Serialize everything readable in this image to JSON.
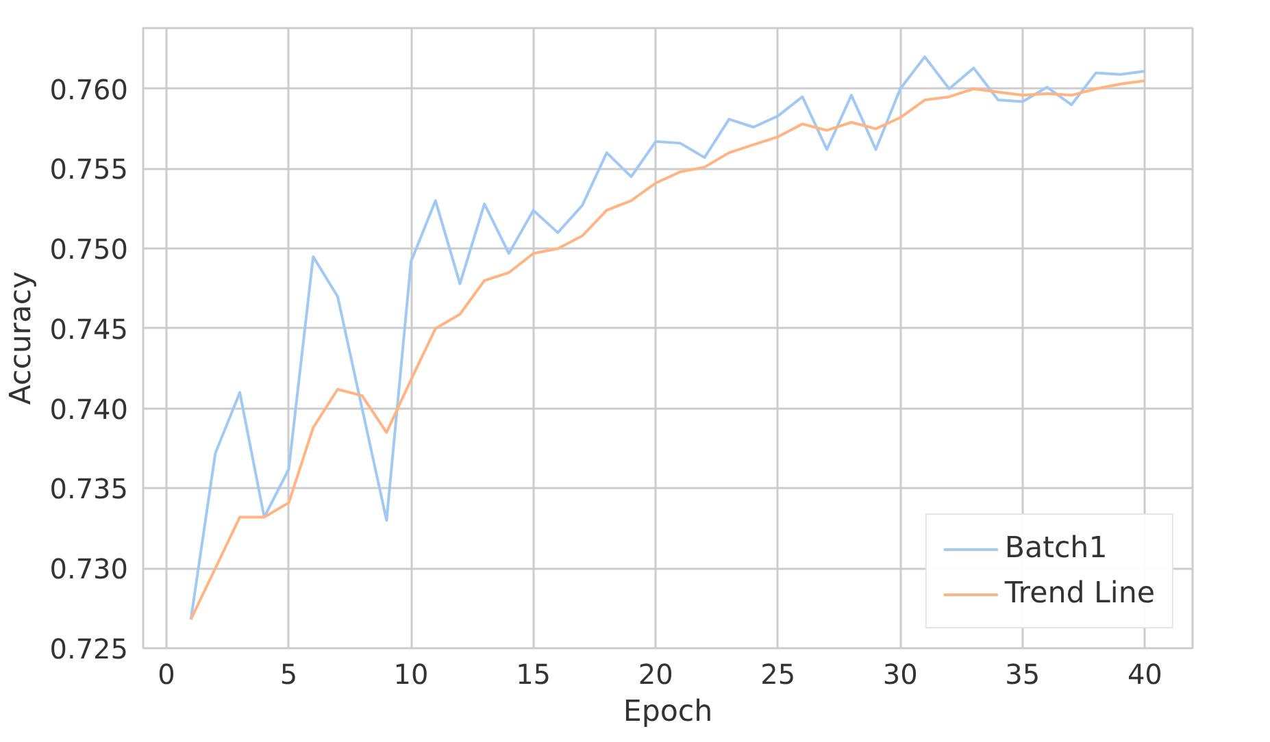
{
  "chart_data": {
    "type": "line",
    "xlabel": "Epoch",
    "ylabel": "Accuracy",
    "x": [
      1,
      2,
      3,
      4,
      5,
      6,
      7,
      8,
      9,
      10,
      11,
      12,
      13,
      14,
      15,
      16,
      17,
      18,
      19,
      20,
      21,
      22,
      23,
      24,
      25,
      26,
      27,
      28,
      29,
      30,
      31,
      32,
      33,
      34,
      35,
      36,
      37,
      38,
      39,
      40
    ],
    "series": [
      {
        "name": "Batch1",
        "color": "#a1c9f4",
        "values": [
          0.7268,
          0.7372,
          0.741,
          0.7332,
          0.7362,
          0.7495,
          0.747,
          0.74,
          0.733,
          0.7492,
          0.753,
          0.7478,
          0.7528,
          0.7497,
          0.7524,
          0.751,
          0.7527,
          0.756,
          0.7545,
          0.7567,
          0.7566,
          0.7557,
          0.7581,
          0.7576,
          0.7583,
          0.7595,
          0.7562,
          0.7596,
          0.7562,
          0.76,
          0.762,
          0.76,
          0.7613,
          0.7593,
          0.7592,
          0.7601,
          0.759,
          0.761,
          0.7609,
          0.7611
        ]
      },
      {
        "name": "Trend Line",
        "color": "#ffb482",
        "values": [
          0.7268,
          0.73,
          0.7332,
          0.7332,
          0.7341,
          0.7388,
          0.7412,
          0.7408,
          0.7385,
          0.7418,
          0.745,
          0.7459,
          0.748,
          0.7485,
          0.7497,
          0.75,
          0.7508,
          0.7524,
          0.753,
          0.7541,
          0.7548,
          0.7551,
          0.756,
          0.7565,
          0.757,
          0.7578,
          0.7574,
          0.7579,
          0.7575,
          0.7582,
          0.7593,
          0.7595,
          0.76,
          0.7598,
          0.7596,
          0.7597,
          0.7596,
          0.76,
          0.7603,
          0.7605
        ]
      }
    ],
    "xlim": [
      -0.95,
      41.95
    ],
    "xticks": [
      0,
      5,
      10,
      15,
      20,
      25,
      30,
      35,
      40
    ],
    "ylim": [
      0.725,
      0.7638
    ],
    "yticks": [
      {
        "value": 0.725,
        "label": "0.725"
      },
      {
        "value": 0.73,
        "label": "0.730"
      },
      {
        "value": 0.735,
        "label": "0.735"
      },
      {
        "value": 0.74,
        "label": "0.740"
      },
      {
        "value": 0.745,
        "label": "0.745"
      },
      {
        "value": 0.75,
        "label": "0.750"
      },
      {
        "value": 0.755,
        "label": "0.755"
      },
      {
        "value": 0.76,
        "label": "0.760"
      }
    ],
    "grid": true,
    "legend": "bottom right",
    "marker": "none",
    "line_style": "solid"
  }
}
